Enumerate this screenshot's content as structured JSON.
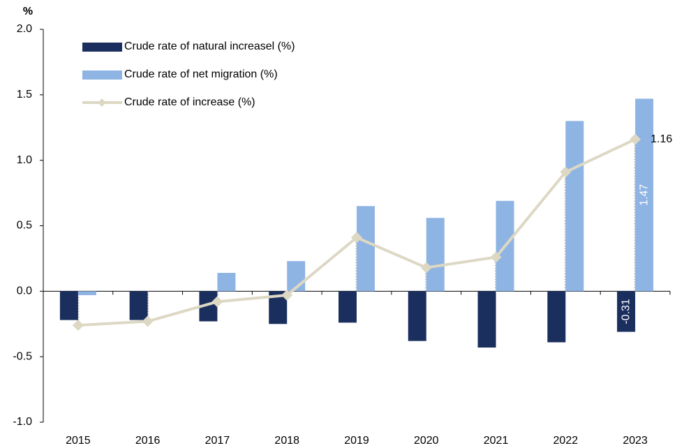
{
  "chart_data": {
    "type": "bar_line",
    "ylabel": "%",
    "categories": [
      "2015",
      "2016",
      "2017",
      "2018",
      "2019",
      "2020",
      "2021",
      "2022",
      "2023"
    ],
    "series": [
      {
        "name": "Crude rate of natural increasel (%)",
        "type": "bar",
        "color": "#1b2f5e",
        "values": [
          -0.22,
          -0.22,
          -0.23,
          -0.25,
          -0.24,
          -0.38,
          -0.43,
          -0.39,
          -0.31
        ],
        "labeled_points": [
          8
        ]
      },
      {
        "name": "Crude rate of net migration (%)",
        "type": "bar",
        "color": "#8eb4e3",
        "values": [
          -0.03,
          0.0,
          0.14,
          0.23,
          0.65,
          0.56,
          0.69,
          1.3,
          1.47
        ],
        "labeled_points": [
          8
        ]
      },
      {
        "name": "Crude rate of increase (%)",
        "type": "line",
        "color": "#ddd8c4",
        "values": [
          -0.26,
          -0.23,
          -0.08,
          -0.03,
          0.41,
          0.18,
          0.26,
          0.91,
          1.16
        ],
        "labeled_points": [
          8
        ]
      }
    ],
    "ylim": [
      -1.0,
      2.0
    ],
    "yticks": [
      {
        "value": -1.0,
        "label": "-1.0"
      },
      {
        "value": -0.5,
        "label": "-0.5"
      },
      {
        "value": 0.0,
        "label": "0.0"
      },
      {
        "value": 0.5,
        "label": "0.5"
      },
      {
        "value": 1.0,
        "label": "1.0"
      },
      {
        "value": 1.5,
        "label": "1.5"
      },
      {
        "value": 2.0,
        "label": "2.0"
      }
    ],
    "legend": "top-left",
    "grid": false
  }
}
